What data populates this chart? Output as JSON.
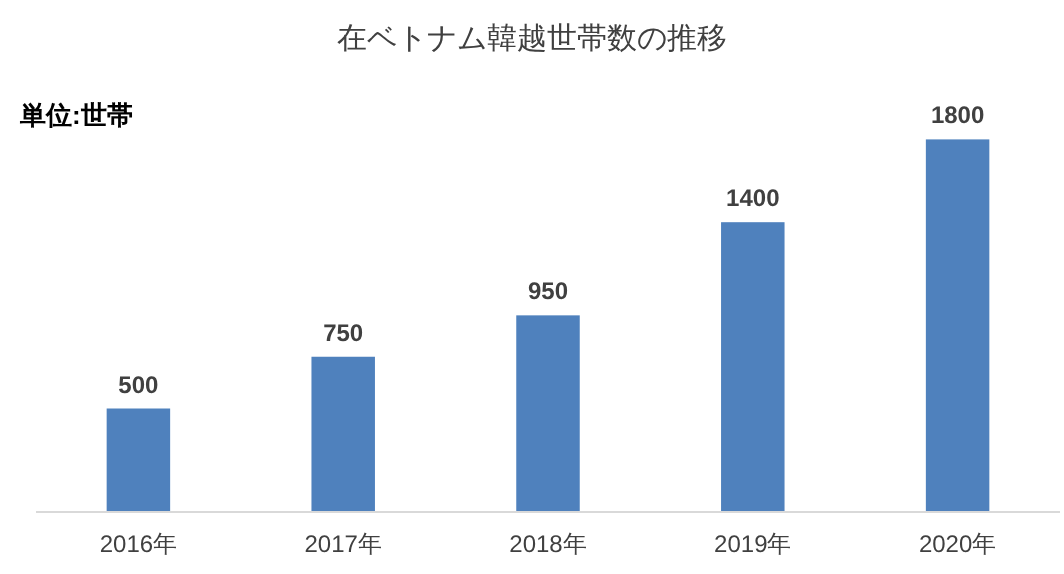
{
  "chart_data": {
    "type": "bar",
    "title": "在ベトナム韓越世帯数の推移",
    "annotations": [
      "単位:世帯"
    ],
    "categories": [
      "2016年",
      "2017年",
      "2018年",
      "2019年",
      "2020年"
    ],
    "values": [
      500,
      750,
      950,
      1400,
      1800
    ],
    "color": "#4f81bd",
    "data_labels": true
  }
}
